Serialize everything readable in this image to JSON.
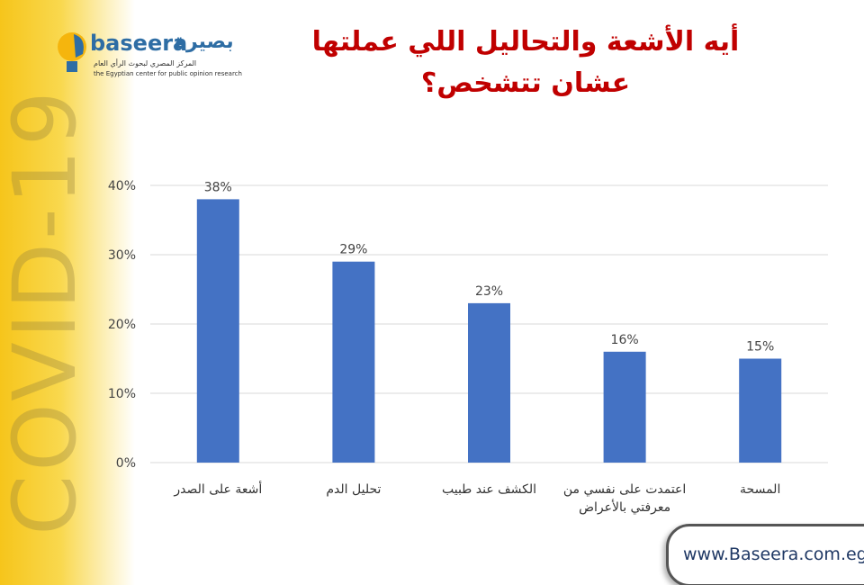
{
  "chart_data": {
    "type": "bar",
    "title": "أيه الأشعة والتحاليل اللي عملتها عشان تتشخص؟",
    "categories": [
      "أشعة على الصدر",
      "تحليل الدم",
      "الكشف عند طبيب",
      "اعتمدت على نفسي من معرفتي بالأعراض",
      "المسحة"
    ],
    "values": [
      38,
      29,
      23,
      16,
      15
    ],
    "value_labels": [
      "38%",
      "29%",
      "23%",
      "16%",
      "15%"
    ],
    "color": "#4472c4",
    "ylim": [
      0,
      40
    ],
    "yticks": [
      {
        "value": 0,
        "label": "0%"
      },
      {
        "value": 10,
        "label": "10%"
      },
      {
        "value": 20,
        "label": "20%"
      },
      {
        "value": 30,
        "label": "30%"
      },
      {
        "value": 40,
        "label": "40%"
      }
    ],
    "grid": true
  },
  "logo": {
    "name_latin": "baseera",
    "name_arabic": "بصيرة",
    "tagline_arabic": "المركز المصري لبحوث الرأي العام",
    "tagline_english": "the Egyptian center for public opinion research"
  },
  "background_text": "COVID-19",
  "footer": {
    "website": "www.Baseera.com.eg"
  }
}
